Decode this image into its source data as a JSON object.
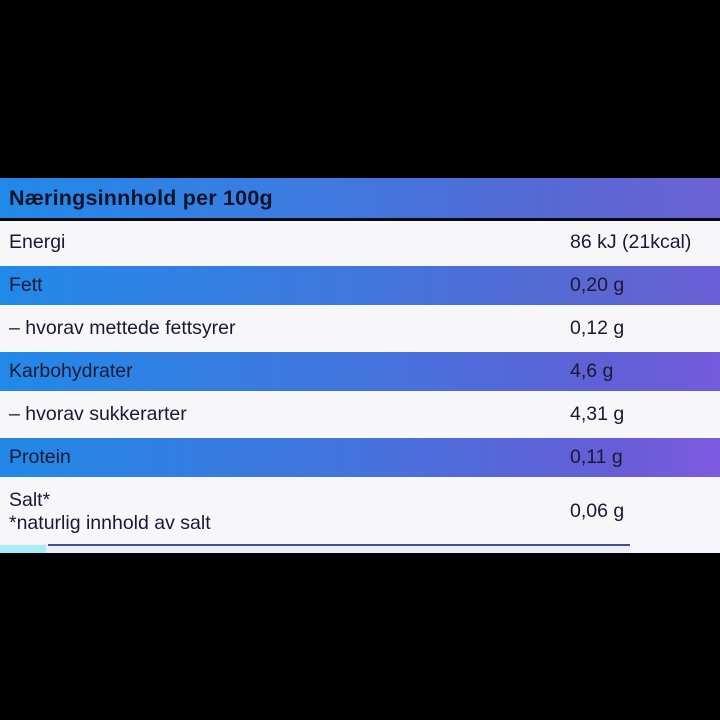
{
  "panel": {
    "title": "Næringsinnhold per 100g",
    "rows": [
      {
        "label": "Energi",
        "value": "86 kJ (21kcal)"
      },
      {
        "label": "Fett",
        "value": "0,20 g"
      },
      {
        "label": "– hvorav mettede fettsyrer",
        "value": "0,12 g"
      },
      {
        "label": "Karbohydrater",
        "value": "4,6 g"
      },
      {
        "label": "– hvorav sukkerarter",
        "value": "4,31 g"
      },
      {
        "label": "Protein",
        "value": "0,11 g"
      },
      {
        "label": "Salt*",
        "sublabel": "*naturlig innhold av salt",
        "value": "0,06 g"
      }
    ],
    "colors": {
      "gradient_start": "#2189e8",
      "gradient_end": "#7b5de2",
      "row_light": "#f7f7f9",
      "text_dark": "#191933",
      "letterbox": "#000000",
      "strip_cyan": "#a9edf8",
      "strip_line": "#3d508f"
    }
  }
}
